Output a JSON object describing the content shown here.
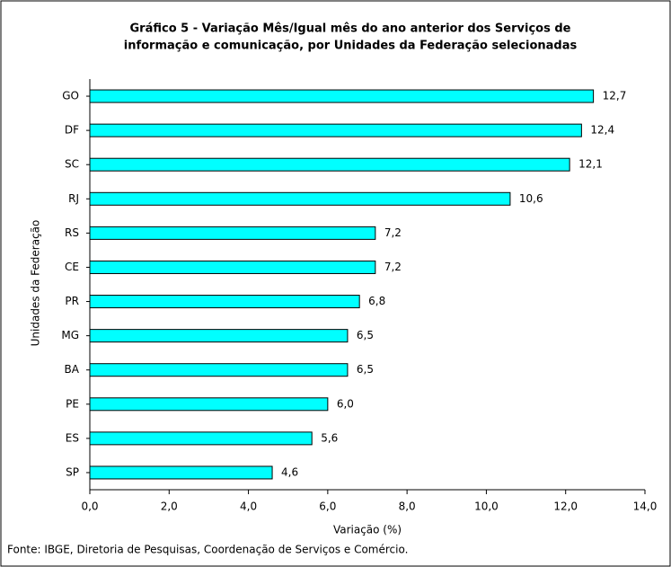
{
  "chart_data": {
    "type": "bar",
    "orientation": "horizontal",
    "title": [
      "Gráfico 5 - Variação Mês/Igual mês do ano anterior dos Serviços de",
      "informação e comunicação, por Unidades da Federação selecionadas"
    ],
    "categories": [
      "GO",
      "DF",
      "SC",
      "RJ",
      "RS",
      "CE",
      "PR",
      "MG",
      "BA",
      "PE",
      "ES",
      "SP"
    ],
    "values": [
      12.7,
      12.4,
      12.1,
      10.6,
      7.2,
      7.2,
      6.8,
      6.5,
      6.5,
      6.0,
      5.6,
      4.6
    ],
    "value_labels": [
      "12,7",
      "12,4",
      "12,1",
      "10,6",
      "7,2",
      "7,2",
      "6,8",
      "6,5",
      "6,5",
      "6,0",
      "5,6",
      "4,6"
    ],
    "color": "#00ffff",
    "xlim": [
      0,
      14
    ],
    "xticks": [
      {
        "value": 0,
        "label": "0,0"
      },
      {
        "value": 2,
        "label": "2,0"
      },
      {
        "value": 4,
        "label": "4,0"
      },
      {
        "value": 6,
        "label": "6,0"
      },
      {
        "value": 8,
        "label": "8,0"
      },
      {
        "value": 10,
        "label": "10,0"
      },
      {
        "value": 12,
        "label": "12,0"
      },
      {
        "value": 14,
        "label": "14,0"
      }
    ],
    "xlabel": "Variação (%)",
    "ylabel": "Unidades da Federação",
    "source": "Fonte: IBGE, Diretoria de Pesquisas, Coordenação de Serviços e Comércio."
  }
}
